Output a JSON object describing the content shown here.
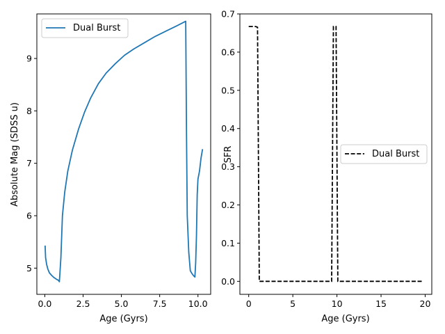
{
  "chart_data": [
    {
      "type": "line",
      "xlabel": "Age (Gyrs)",
      "ylabel": "Absolute Mag (SDSS u)",
      "xlim": [
        -0.52,
        10.83
      ],
      "ylim": [
        4.5,
        9.85
      ],
      "x_ticks": [
        0.0,
        2.5,
        5.0,
        7.5,
        10.0
      ],
      "x_tick_labels": [
        "0.0",
        "2.5",
        "5.0",
        "7.5",
        "10.0"
      ],
      "y_ticks": [
        5,
        6,
        7,
        8,
        9
      ],
      "y_tick_labels": [
        "5",
        "6",
        "7",
        "8",
        "9"
      ],
      "grid": false,
      "legend_position": "upper left",
      "series": [
        {
          "name": "Dual Burst",
          "color": "#1f77b4",
          "linestyle": "solid",
          "x": [
            0.02,
            0.05,
            0.12,
            0.2,
            0.3,
            0.45,
            0.6,
            0.75,
            0.88,
            0.95,
            1.05,
            1.15,
            1.3,
            1.5,
            1.8,
            2.2,
            2.6,
            3.0,
            3.5,
            4.0,
            4.6,
            5.2,
            5.8,
            6.5,
            7.2,
            7.9,
            8.6,
            9.2,
            9.25,
            9.3,
            9.4,
            9.5,
            9.6,
            9.7,
            9.8,
            9.85,
            9.9,
            9.95,
            10.0,
            10.1,
            10.2,
            10.3
          ],
          "y": [
            5.43,
            5.2,
            5.07,
            4.98,
            4.91,
            4.86,
            4.82,
            4.79,
            4.77,
            4.74,
            5.2,
            6.0,
            6.45,
            6.85,
            7.25,
            7.65,
            7.98,
            8.25,
            8.52,
            8.72,
            8.9,
            9.06,
            9.18,
            9.3,
            9.42,
            9.52,
            9.62,
            9.71,
            7.6,
            6.0,
            5.3,
            4.95,
            4.9,
            4.86,
            4.83,
            5.1,
            5.6,
            6.4,
            6.7,
            6.85,
            7.1,
            7.27
          ]
        }
      ]
    },
    {
      "type": "line",
      "xlabel": "Age (Gyrs)",
      "ylabel": "SFR",
      "xlim": [
        -1.0,
        20.75
      ],
      "ylim": [
        -0.034,
        0.7
      ],
      "x_ticks": [
        0,
        5,
        10,
        15,
        20
      ],
      "x_tick_labels": [
        "0",
        "5",
        "10",
        "15",
        "20"
      ],
      "y_ticks": [
        0.0,
        0.1,
        0.2,
        0.3,
        0.4,
        0.5,
        0.6,
        0.7
      ],
      "y_tick_labels": [
        "0.0",
        "0.1",
        "0.2",
        "0.3",
        "0.4",
        "0.5",
        "0.6",
        "0.7"
      ],
      "grid": false,
      "legend_position": "center right",
      "series": [
        {
          "name": "Dual Burst",
          "color": "#000000",
          "linestyle": "dashed",
          "x": [
            0.0,
            0.8,
            1.0,
            1.2,
            9.3,
            9.4,
            9.6,
            9.9,
            10.1,
            19.7
          ],
          "y": [
            0.667,
            0.667,
            0.665,
            0.0,
            0.0,
            0.0,
            0.667,
            0.667,
            0.0,
            0.0
          ]
        }
      ]
    }
  ]
}
